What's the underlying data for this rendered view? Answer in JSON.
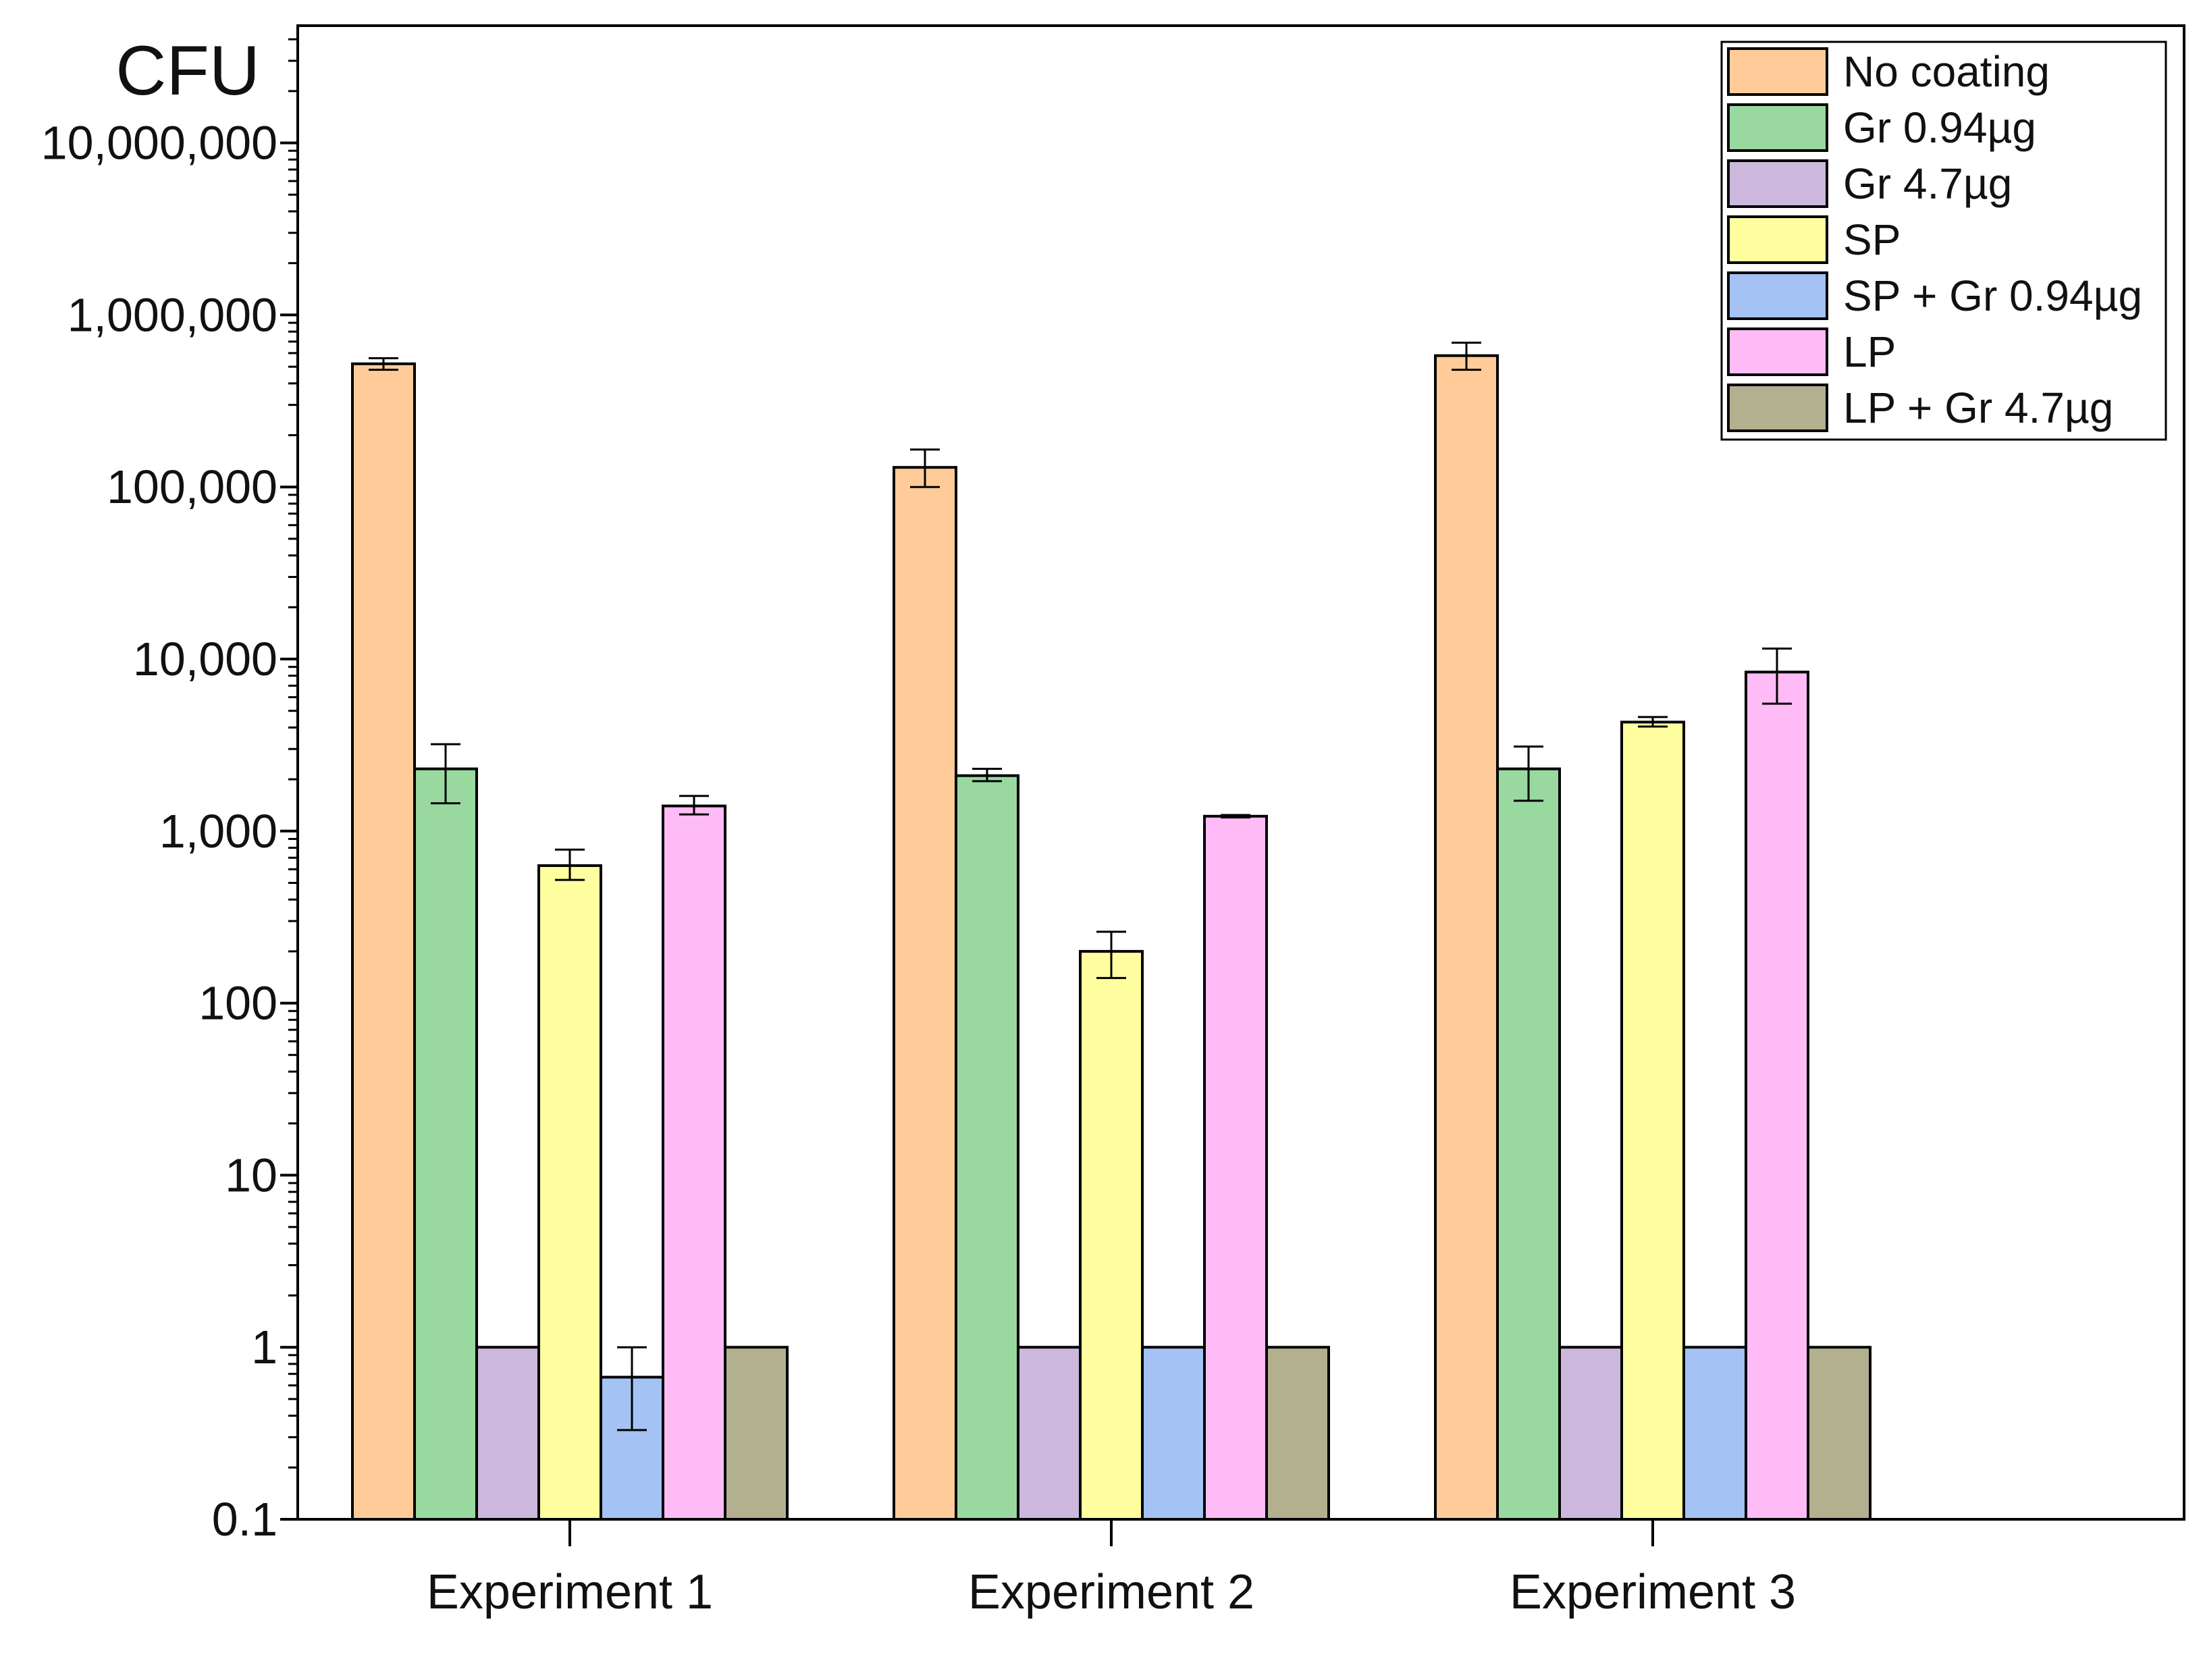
{
  "chart_data": {
    "type": "bar",
    "title": "",
    "xlabel": "",
    "ylabel": "CFU",
    "yscale": "log",
    "ylim": [
      0.1,
      50000000
    ],
    "yticks": [
      0.1,
      1,
      10,
      100,
      1000,
      10000,
      100000,
      1000000,
      10000000
    ],
    "ytick_labels": [
      "0.1",
      "1",
      "10",
      "100",
      "1,000",
      "10,000",
      "100,000",
      "1,000,000",
      "10,000,000"
    ],
    "categories": [
      "Experiment 1",
      "Experiment 2",
      "Experiment 3"
    ],
    "legend_position": "top-right",
    "series": [
      {
        "name": "No coating",
        "color": "#FFCC99",
        "values": [
          520000,
          130000,
          580000
        ],
        "errors": [
          [
            480000,
            560000
          ],
          [
            100000,
            165000
          ],
          [
            480000,
            690000
          ]
        ]
      },
      {
        "name": "Gr 0.94µg",
        "color": "#99D9A0",
        "values": [
          2300,
          2100,
          2300
        ],
        "errors": [
          [
            1450,
            3200
          ],
          [
            1950,
            2300
          ],
          [
            1500,
            3100
          ]
        ]
      },
      {
        "name": "Gr 4.7µg",
        "color": "#CCB8DC",
        "values": [
          1,
          1,
          1
        ],
        "errors": null
      },
      {
        "name": "SP",
        "color": "#FFFFA0",
        "values": [
          630,
          200,
          4300
        ],
        "errors": [
          [
            520,
            780
          ],
          [
            140,
            260
          ],
          [
            4050,
            4600
          ]
        ]
      },
      {
        "name": "SP + Gr 0.94µg",
        "color": "#A4C2F4",
        "values": [
          0.67,
          1,
          1
        ],
        "errors": [
          [
            0.33,
            1.0
          ],
          null,
          null
        ]
      },
      {
        "name": "LP",
        "color": "#FFBBF5",
        "values": [
          1400,
          1220,
          8400
        ],
        "errors": [
          [
            1250,
            1600
          ],
          [
            1200,
            1240
          ],
          [
            5500,
            11500
          ]
        ]
      },
      {
        "name": "LP + Gr 4.7µg",
        "color": "#B3B08F",
        "values": [
          1,
          1,
          1
        ],
        "errors": null
      }
    ]
  }
}
